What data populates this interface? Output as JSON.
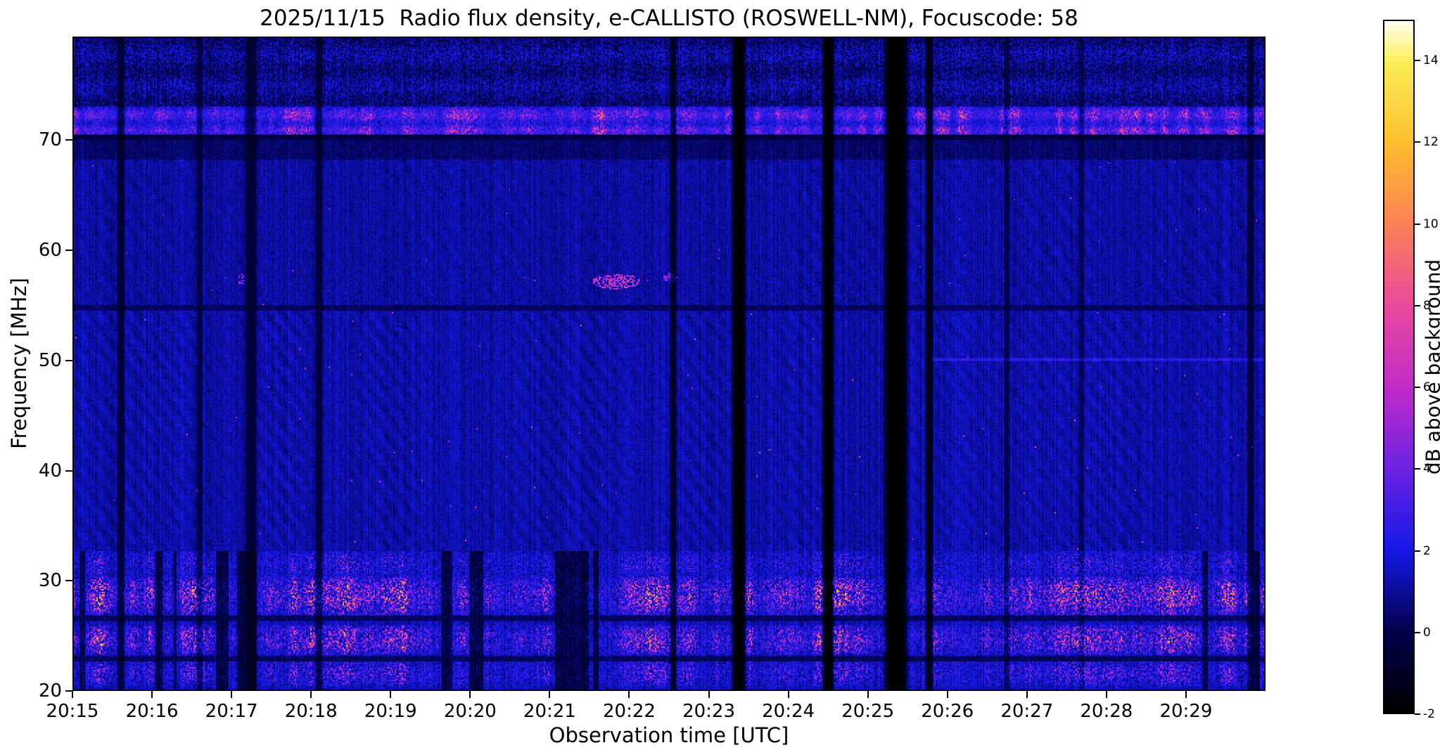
{
  "figure": {
    "background": "#ffffff"
  },
  "chart_data": {
    "type": "heatmap",
    "title": "2025/11/15  Radio flux density, e-CALLISTO (ROSWELL-NM), Focuscode: 58",
    "xlabel": "Observation time [UTC]",
    "ylabel": "Frequency [MHz]",
    "x_tick_labels": [
      "20:15",
      "20:16",
      "20:17",
      "20:18",
      "20:19",
      "20:20",
      "20:21",
      "20:22",
      "20:23",
      "20:24",
      "20:25",
      "20:26",
      "20:27",
      "20:28",
      "20:29"
    ],
    "x_range_minutes": [
      0,
      15
    ],
    "y_ticks": [
      20,
      30,
      40,
      50,
      60,
      70
    ],
    "y_range_mhz": [
      20,
      79.4
    ],
    "grid": false,
    "colorbar": {
      "label": "dB above background",
      "ticks": [
        -2,
        0,
        2,
        4,
        6,
        8,
        10,
        12,
        14
      ],
      "range": [
        -2,
        15
      ],
      "colormap_stops": [
        {
          "t": 0.0,
          "color": "#000000"
        },
        {
          "t": 0.12,
          "color": "#02024e"
        },
        {
          "t": 0.235,
          "color": "#1518e6"
        },
        {
          "t": 0.35,
          "color": "#6a22e2"
        },
        {
          "t": 0.47,
          "color": "#c12cc9"
        },
        {
          "t": 0.59,
          "color": "#ea4a9b"
        },
        {
          "t": 0.71,
          "color": "#fb8254"
        },
        {
          "t": 0.82,
          "color": "#fdbc2e"
        },
        {
          "t": 0.94,
          "color": "#faee55"
        },
        {
          "t": 1.0,
          "color": "#fffff0"
        }
      ]
    },
    "spectrogram_features": {
      "base_level_db": 1.2,
      "quiet_band": {
        "f_low": 68.3,
        "f_high": 70.15,
        "level_db": 0.4
      },
      "interference_band_70mhz": {
        "f_low": 70.55,
        "f_high": 73.1,
        "peak_rows_mhz": [
          70.95,
          72.4
        ],
        "level_db": 3,
        "speckle_db": 6.5
      },
      "dark_line_mhz": [
        70.35,
        54.8,
        26.5,
        22.8
      ],
      "weak_line_50mhz": {
        "f_mhz": 50.05,
        "t_start": 0.72,
        "db": 1.3
      },
      "low_band_bursts": [
        {
          "f_low": 26.8,
          "f_high": 30.3,
          "max_db": 13
        },
        {
          "f_low": 23.2,
          "f_high": 25.9,
          "max_db": 11
        },
        {
          "f_low": 20.3,
          "f_high": 22.6,
          "max_db": 6
        },
        {
          "f_low": 30.3,
          "f_high": 32.6,
          "max_db": 4
        }
      ],
      "transient_spots": [
        {
          "t_frac": 0.455,
          "f_mhz": 57.2,
          "w_frac": 0.04,
          "h_mhz": 1.4,
          "db": 8
        },
        {
          "t_frac": 0.5,
          "f_mhz": 57.5,
          "w_frac": 0.012,
          "h_mhz": 0.9,
          "db": 6
        },
        {
          "t_frac": 0.14,
          "f_mhz": 57.4,
          "w_frac": 0.007,
          "h_mhz": 0.9,
          "db": 6
        }
      ],
      "dropout_columns": [
        {
          "t_frac": 0.039,
          "w_frac": 0.006,
          "depth": 0.55
        },
        {
          "t_frac": 0.105,
          "w_frac": 0.005,
          "depth": 0.45
        },
        {
          "t_frac": 0.148,
          "w_frac": 0.01,
          "depth": 0.5
        },
        {
          "t_frac": 0.205,
          "w_frac": 0.006,
          "depth": 0.5
        },
        {
          "t_frac": 0.503,
          "w_frac": 0.005,
          "depth": 0.65
        },
        {
          "t_frac": 0.558,
          "w_frac": 0.011,
          "depth": 0.95
        },
        {
          "t_frac": 0.633,
          "w_frac": 0.009,
          "depth": 0.97
        },
        {
          "t_frac": 0.69,
          "w_frac": 0.018,
          "depth": 1.0
        },
        {
          "t_frac": 0.718,
          "w_frac": 0.006,
          "depth": 0.8
        },
        {
          "t_frac": 0.783,
          "w_frac": 0.004,
          "depth": 0.4
        },
        {
          "t_frac": 0.846,
          "w_frac": 0.004,
          "depth": 0.35
        },
        {
          "t_frac": 0.988,
          "w_frac": 0.006,
          "depth": 0.5
        }
      ]
    }
  }
}
